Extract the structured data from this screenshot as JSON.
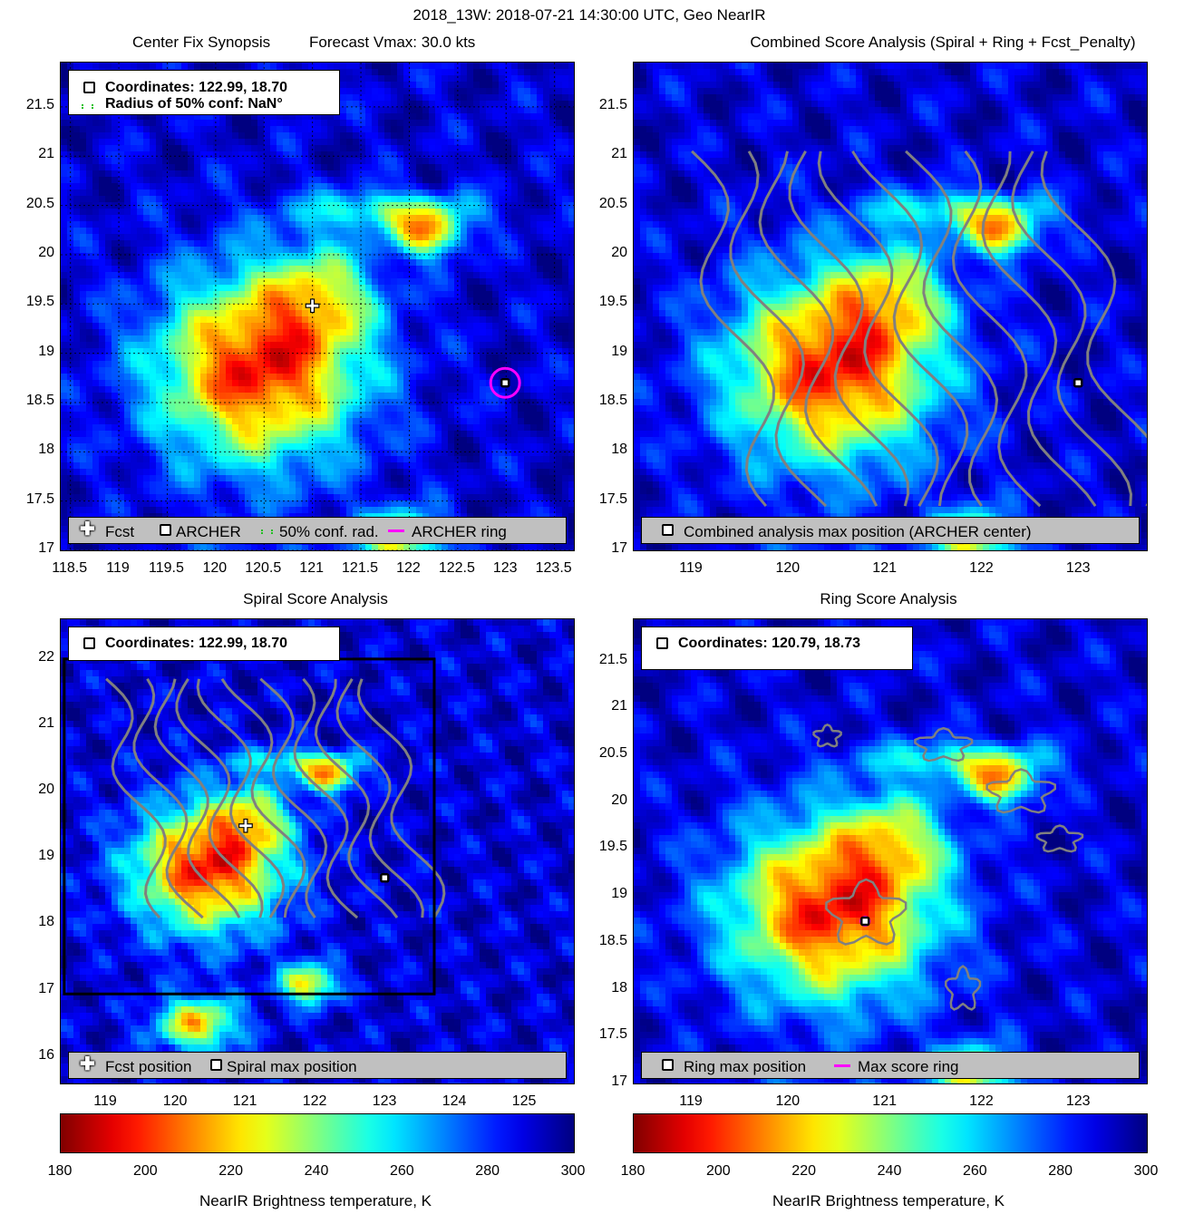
{
  "header": {
    "title": "2018_13W: 2018-07-21 14:30:00 UTC, Geo NearIR"
  },
  "colors": {
    "cold": "#00008f",
    "warm": "#800000",
    "magenta": "#ff00ff",
    "contour": "#808080",
    "legend_bg": "#c0c0c0"
  },
  "icons": {
    "fcst": "plus-marker-icon",
    "archer": "square-marker-icon"
  },
  "panels": {
    "p1": {
      "title_left": "Center Fix Synopsis",
      "title_right": "Forecast Vmax: 30.0 kts",
      "info_line1": "Coordinates: 122.99, 18.70",
      "info_line2": "Radius of 50% conf: NaN°",
      "legend": {
        "fcst": "Fcst",
        "archer": "ARCHER",
        "conf": "50% conf. rad.",
        "ring": "ARCHER ring"
      }
    },
    "p2": {
      "title": "Combined Score Analysis (Spiral + Ring + Fcst_Penalty)",
      "legend": {
        "max": "Combined analysis max position (ARCHER center)"
      }
    },
    "p3": {
      "title": "Spiral Score Analysis",
      "info_line1": "Coordinates: 122.99, 18.70",
      "legend": {
        "fcst": "Fcst position",
        "max": "Spiral max position"
      }
    },
    "p4": {
      "title": "Ring Score Analysis",
      "info_line1": "Coordinates: 120.79, 18.73",
      "legend": {
        "max": "Ring max position",
        "ring": "Max score ring"
      }
    }
  },
  "colorbar": {
    "label": "NearIR Brightness temperature, K",
    "ticks": [
      "180",
      "200",
      "220",
      "240",
      "260",
      "280",
      "300"
    ],
    "range": [
      180,
      300
    ]
  },
  "chart_data": [
    {
      "type": "heatmap",
      "title": "Center Fix Synopsis",
      "xlim": [
        118.4,
        123.7
      ],
      "ylim": [
        17,
        21.95
      ],
      "xticks": [
        "118.5",
        "119",
        "119.5",
        "120",
        "120.5",
        "121",
        "121.5",
        "122",
        "122.5",
        "123",
        "123.5"
      ],
      "yticks": [
        "17",
        "17.5",
        "18",
        "18.5",
        "19",
        "19.5",
        "20",
        "20.5",
        "21",
        "21.5"
      ],
      "grid": true,
      "points": {
        "fcst": [
          121.0,
          19.47
        ],
        "archer": [
          122.99,
          18.7
        ]
      }
    },
    {
      "type": "heatmap",
      "title": "Combined Score Analysis (Spiral + Ring + Fcst_Penalty)",
      "xlim": [
        118.4,
        123.7
      ],
      "ylim": [
        17,
        21.95
      ],
      "xticks": [
        "119",
        "120",
        "121",
        "122",
        "123"
      ],
      "yticks": [
        "17",
        "17.5",
        "18",
        "18.5",
        "19",
        "19.5",
        "20",
        "20.5",
        "21",
        "21.5"
      ],
      "points": {
        "max": [
          122.99,
          18.7
        ]
      }
    },
    {
      "type": "heatmap",
      "title": "Spiral Score Analysis",
      "xlim": [
        118.35,
        125.7
      ],
      "ylim": [
        15.6,
        22.6
      ],
      "xticks": [
        "119",
        "120",
        "121",
        "122",
        "123",
        "124",
        "125"
      ],
      "yticks": [
        "16",
        "17",
        "18",
        "19",
        "20",
        "21",
        "22"
      ],
      "points": {
        "fcst": [
          121.0,
          19.47
        ],
        "max": [
          122.99,
          18.7
        ]
      }
    },
    {
      "type": "heatmap",
      "title": "Ring Score Analysis",
      "xlim": [
        118.4,
        123.7
      ],
      "ylim": [
        17,
        21.95
      ],
      "xticks": [
        "119",
        "120",
        "121",
        "122",
        "123"
      ],
      "yticks": [
        "17",
        "17.5",
        "18",
        "18.5",
        "19",
        "19.5",
        "20",
        "20.5",
        "21",
        "21.5"
      ],
      "points": {
        "max": [
          120.79,
          18.73
        ]
      }
    }
  ]
}
